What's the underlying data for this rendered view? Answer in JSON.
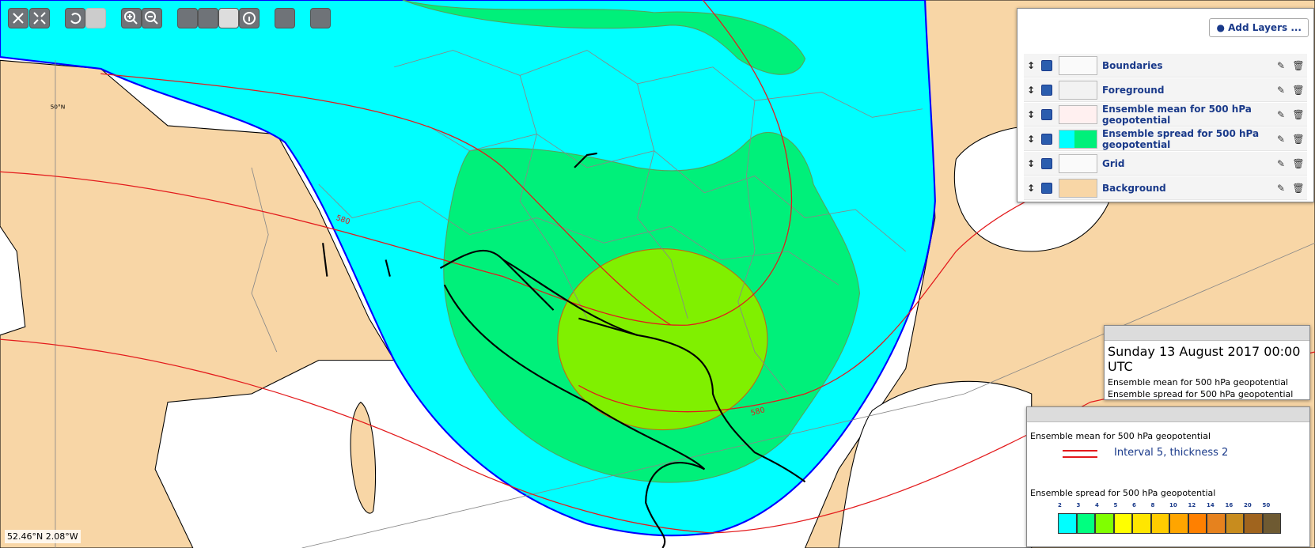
{
  "map": {
    "grid_label": "50°N",
    "contour_labels": [
      "580",
      "580"
    ],
    "coordinates": "52.46°N 2.08°W"
  },
  "layers": {
    "add_button": "Add Layers ...",
    "items": [
      "Boundaries",
      "Foreground",
      "Ensemble mean for 500 hPa geopotential",
      "Ensemble spread for 500 hPa geopotential",
      "Grid",
      "Background"
    ]
  },
  "info": {
    "date": "Sunday 13 August 2017 00:00 UTC",
    "lines": [
      "Ensemble mean for 500 hPa geopotential",
      "Ensemble spread for 500 hPa geopotential"
    ]
  },
  "legend": {
    "mean_title": "Ensemble mean for 500 hPa geopotential",
    "line_text": "Interval 5, thickness 2",
    "spread_title": "Ensemble spread for 500 hPa geopotential",
    "scale": {
      "labels": [
        2,
        3,
        4,
        5,
        6,
        8,
        10,
        12,
        14,
        16,
        20,
        50
      ],
      "colors": [
        "#00ffff",
        "#00ff80",
        "#80ff00",
        "#ffff00",
        "#ffe600",
        "#ffcc00",
        "#ffa500",
        "#ff8000",
        "#e6821e",
        "#c88c1e",
        "#a0641e",
        "#6e5a32"
      ]
    }
  }
}
